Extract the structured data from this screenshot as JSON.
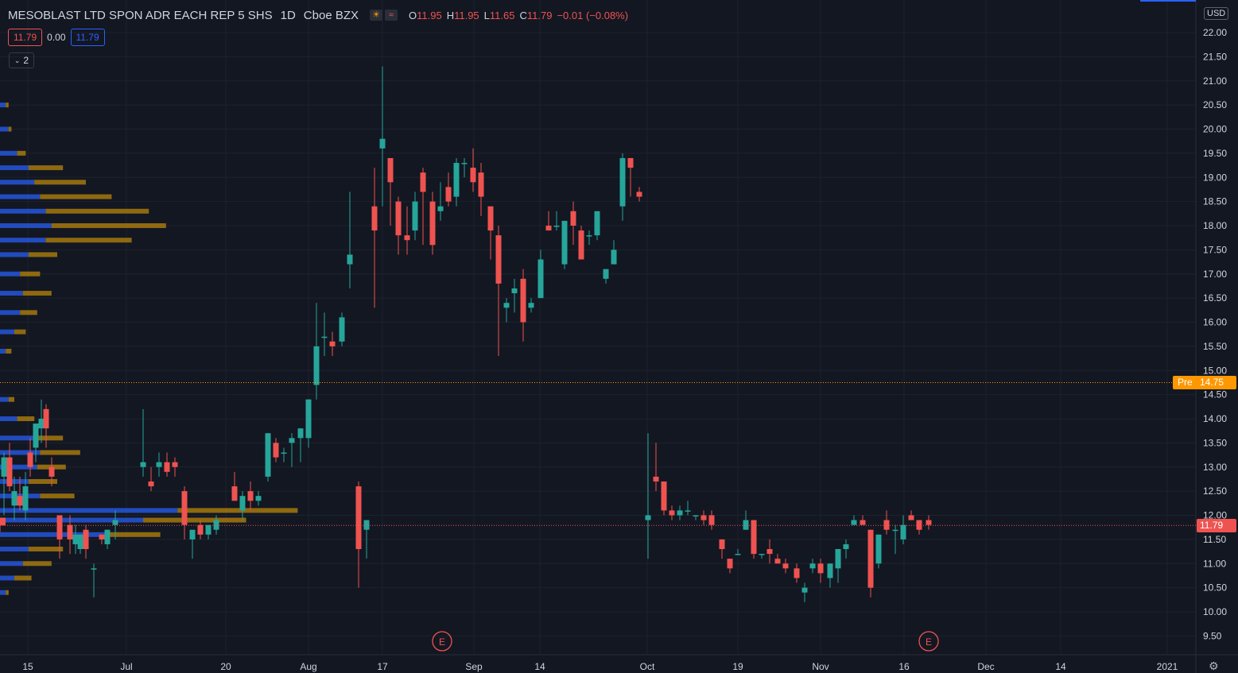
{
  "header": {
    "symbol": "MESOBLAST LTD SPON ADR EACH REP 5 SHS",
    "interval": "1D",
    "exchange": "Cboe BZX",
    "ohlc": {
      "o_label": "O",
      "o": "11.95",
      "h_label": "H",
      "h": "11.95",
      "l_label": "L",
      "l": "11.65",
      "c_label": "C",
      "c": "11.79",
      "chg": "−0.01 (−0.08%)"
    },
    "sell_price": "11.79",
    "spread": "0.00",
    "buy_price": "11.79",
    "indicator_count": "2",
    "icons": [
      "sun-icon",
      "wave-icon"
    ]
  },
  "price_scale": {
    "unit": "USD",
    "min": 9.5,
    "max": 22.0,
    "step": 0.5,
    "pre_label": "Pre",
    "pre_value": "14.75",
    "last_value": "11.79"
  },
  "colors": {
    "up": "#26a69a",
    "down": "#ef5350",
    "background": "#131722",
    "grid": "#1e222d",
    "pre_line": "#ff9800",
    "last_line": "#ef5350",
    "volume_profile_up": "#2962ff",
    "volume_profile_down": "#b8860b"
  },
  "chart_data": {
    "type": "candlestick",
    "title": "MESOBLAST LTD SPON ADR EACH REP 5 SHS · 1D · Cboe BZX",
    "ylim": [
      9.5,
      22.0
    ],
    "x_ticks": [
      "15",
      "Jul",
      "20",
      "Aug",
      "17",
      "Sep",
      "14",
      "Oct",
      "19",
      "Nov",
      "16",
      "Dec",
      "14",
      "2021"
    ],
    "pre_market_price": 14.75,
    "last_price": 11.79,
    "earnings_markers": [
      "E",
      "E"
    ],
    "candles": [
      {
        "o": 12.8,
        "h": 13.3,
        "l": 12.0,
        "c": 13.2
      },
      {
        "o": 13.2,
        "h": 13.5,
        "l": 12.5,
        "c": 12.6
      },
      {
        "o": 12.2,
        "h": 12.8,
        "l": 11.9,
        "c": 12.5
      },
      {
        "o": 12.4,
        "h": 12.8,
        "l": 12.1,
        "c": 12.2
      },
      {
        "o": 12.1,
        "h": 12.9,
        "l": 11.9,
        "c": 12.6
      },
      {
        "o": 13.3,
        "h": 13.6,
        "l": 12.8,
        "c": 13.0
      },
      {
        "o": 13.4,
        "h": 13.9,
        "l": 13.1,
        "c": 13.9
      },
      {
        "o": 13.8,
        "h": 14.4,
        "l": 13.5,
        "c": 14.0
      },
      {
        "o": 14.2,
        "h": 14.3,
        "l": 13.4,
        "c": 13.8
      },
      {
        "o": 13.0,
        "h": 13.2,
        "l": 12.6,
        "c": 12.8
      },
      {
        "o": 12.0,
        "h": 12.0,
        "l": 11.1,
        "c": 11.5
      },
      {
        "o": 11.8,
        "h": 12.0,
        "l": 11.2,
        "c": 11.5
      },
      {
        "o": 11.4,
        "h": 11.8,
        "l": 11.2,
        "c": 11.6
      },
      {
        "o": 11.3,
        "h": 11.6,
        "l": 11.2,
        "c": 11.6
      },
      {
        "o": 11.7,
        "h": 11.8,
        "l": 11.1,
        "c": 11.3
      },
      {
        "o": 10.9,
        "h": 11.0,
        "l": 10.3,
        "c": 10.9
      },
      {
        "o": 11.6,
        "h": 11.6,
        "l": 11.4,
        "c": 11.5
      },
      {
        "o": 11.4,
        "h": 11.7,
        "l": 11.3,
        "c": 11.7
      },
      {
        "o": 11.8,
        "h": 12.1,
        "l": 11.5,
        "c": 11.9
      },
      {
        "o": 13.0,
        "h": 14.2,
        "l": 12.8,
        "c": 13.1
      },
      {
        "o": 12.7,
        "h": 13.0,
        "l": 12.5,
        "c": 12.6
      },
      {
        "o": 13.0,
        "h": 13.3,
        "l": 12.8,
        "c": 13.1
      },
      {
        "o": 13.1,
        "h": 13.3,
        "l": 12.8,
        "c": 12.9
      },
      {
        "o": 13.1,
        "h": 13.2,
        "l": 12.8,
        "c": 13.0
      },
      {
        "o": 12.5,
        "h": 12.6,
        "l": 11.5,
        "c": 11.8
      },
      {
        "o": 11.5,
        "h": 11.6,
        "l": 11.1,
        "c": 11.7
      },
      {
        "o": 11.8,
        "h": 11.9,
        "l": 11.5,
        "c": 11.6
      },
      {
        "o": 11.6,
        "h": 11.8,
        "l": 11.5,
        "c": 11.8
      },
      {
        "o": 11.7,
        "h": 12.0,
        "l": 11.6,
        "c": 11.9
      },
      {
        "o": 12.6,
        "h": 12.9,
        "l": 12.3,
        "c": 12.3
      },
      {
        "o": 12.1,
        "h": 12.5,
        "l": 11.9,
        "c": 12.4
      },
      {
        "o": 12.5,
        "h": 12.7,
        "l": 12.1,
        "c": 12.3
      },
      {
        "o": 12.3,
        "h": 12.5,
        "l": 12.2,
        "c": 12.4
      },
      {
        "o": 12.8,
        "h": 13.7,
        "l": 12.7,
        "c": 13.7
      },
      {
        "o": 13.5,
        "h": 13.6,
        "l": 13.1,
        "c": 13.2
      },
      {
        "o": 13.3,
        "h": 13.4,
        "l": 13.1,
        "c": 13.3
      },
      {
        "o": 13.5,
        "h": 13.7,
        "l": 13.0,
        "c": 13.6
      },
      {
        "o": 13.6,
        "h": 13.8,
        "l": 13.1,
        "c": 13.8
      },
      {
        "o": 13.6,
        "h": 14.4,
        "l": 13.4,
        "c": 14.4
      },
      {
        "o": 14.7,
        "h": 16.4,
        "l": 14.4,
        "c": 15.5
      },
      {
        "o": 15.7,
        "h": 16.2,
        "l": 15.3,
        "c": 15.7
      },
      {
        "o": 15.6,
        "h": 15.8,
        "l": 15.3,
        "c": 15.5
      },
      {
        "o": 15.6,
        "h": 16.2,
        "l": 15.5,
        "c": 16.1
      },
      {
        "o": 17.2,
        "h": 18.7,
        "l": 16.7,
        "c": 17.4
      },
      {
        "o": 12.6,
        "h": 12.7,
        "l": 10.5,
        "c": 11.3
      },
      {
        "o": 11.7,
        "h": 11.9,
        "l": 11.1,
        "c": 11.9
      },
      {
        "o": 18.4,
        "h": 19.2,
        "l": 16.3,
        "c": 17.9
      },
      {
        "o": 19.6,
        "h": 21.3,
        "l": 18.4,
        "c": 19.8
      },
      {
        "o": 19.4,
        "h": 19.4,
        "l": 18.0,
        "c": 18.9
      },
      {
        "o": 18.5,
        "h": 18.6,
        "l": 17.4,
        "c": 17.8
      },
      {
        "o": 17.8,
        "h": 18.4,
        "l": 17.4,
        "c": 17.7
      },
      {
        "o": 17.9,
        "h": 18.7,
        "l": 17.7,
        "c": 18.5
      },
      {
        "o": 19.1,
        "h": 19.2,
        "l": 17.6,
        "c": 18.7
      },
      {
        "o": 18.5,
        "h": 18.7,
        "l": 17.4,
        "c": 17.6
      },
      {
        "o": 18.3,
        "h": 18.9,
        "l": 18.1,
        "c": 18.4
      },
      {
        "o": 18.8,
        "h": 19.1,
        "l": 18.4,
        "c": 18.5
      },
      {
        "o": 18.6,
        "h": 19.4,
        "l": 18.4,
        "c": 19.3
      },
      {
        "o": 19.3,
        "h": 19.4,
        "l": 19.0,
        "c": 19.3
      },
      {
        "o": 19.2,
        "h": 19.6,
        "l": 18.7,
        "c": 18.9
      },
      {
        "o": 19.1,
        "h": 19.3,
        "l": 18.2,
        "c": 18.6
      },
      {
        "o": 18.4,
        "h": 18.4,
        "l": 17.3,
        "c": 17.9
      },
      {
        "o": 17.8,
        "h": 18.0,
        "l": 15.3,
        "c": 16.8
      },
      {
        "o": 16.3,
        "h": 16.5,
        "l": 16.0,
        "c": 16.4
      },
      {
        "o": 16.6,
        "h": 16.9,
        "l": 16.2,
        "c": 16.7
      },
      {
        "o": 16.9,
        "h": 17.1,
        "l": 15.6,
        "c": 16.0
      },
      {
        "o": 16.3,
        "h": 16.5,
        "l": 16.2,
        "c": 16.4
      },
      {
        "o": 16.5,
        "h": 17.5,
        "l": 16.5,
        "c": 17.3
      },
      {
        "o": 18.0,
        "h": 18.3,
        "l": 17.9,
        "c": 17.9
      },
      {
        "o": 18.0,
        "h": 18.3,
        "l": 17.9,
        "c": 18.0
      },
      {
        "o": 17.2,
        "h": 18.1,
        "l": 17.1,
        "c": 18.1
      },
      {
        "o": 18.3,
        "h": 18.5,
        "l": 17.6,
        "c": 18.0
      },
      {
        "o": 17.9,
        "h": 18.0,
        "l": 17.3,
        "c": 17.3
      },
      {
        "o": 17.8,
        "h": 17.9,
        "l": 17.6,
        "c": 17.8
      },
      {
        "o": 17.8,
        "h": 18.3,
        "l": 17.7,
        "c": 18.3
      },
      {
        "o": 16.9,
        "h": 17.1,
        "l": 16.8,
        "c": 17.1
      },
      {
        "o": 17.2,
        "h": 17.7,
        "l": 17.2,
        "c": 17.5
      },
      {
        "o": 18.4,
        "h": 19.5,
        "l": 18.1,
        "c": 19.4
      },
      {
        "o": 19.4,
        "h": 19.4,
        "l": 18.6,
        "c": 19.2
      },
      {
        "o": 18.7,
        "h": 18.8,
        "l": 18.5,
        "c": 18.6
      },
      {
        "o": 11.9,
        "h": 13.7,
        "l": 11.1,
        "c": 12.0
      },
      {
        "o": 12.8,
        "h": 13.5,
        "l": 12.5,
        "c": 12.7
      },
      {
        "o": 12.7,
        "h": 12.7,
        "l": 12.0,
        "c": 12.1
      },
      {
        "o": 12.1,
        "h": 12.2,
        "l": 11.9,
        "c": 12.0
      },
      {
        "o": 12.0,
        "h": 12.2,
        "l": 11.9,
        "c": 12.1
      },
      {
        "o": 12.1,
        "h": 12.3,
        "l": 12.0,
        "c": 12.1
      },
      {
        "o": 12.0,
        "h": 12.0,
        "l": 11.9,
        "c": 12.0
      },
      {
        "o": 12.0,
        "h": 12.1,
        "l": 11.8,
        "c": 11.9
      },
      {
        "o": 12.0,
        "h": 12.1,
        "l": 11.7,
        "c": 11.8
      },
      {
        "o": 11.5,
        "h": 11.5,
        "l": 11.1,
        "c": 11.3
      },
      {
        "o": 11.1,
        "h": 11.1,
        "l": 10.8,
        "c": 10.9
      },
      {
        "o": 11.2,
        "h": 11.3,
        "l": 11.2,
        "c": 11.2
      },
      {
        "o": 11.7,
        "h": 12.1,
        "l": 11.7,
        "c": 11.9
      },
      {
        "o": 11.9,
        "h": 11.9,
        "l": 11.1,
        "c": 11.2
      },
      {
        "o": 11.2,
        "h": 11.2,
        "l": 11.1,
        "c": 11.2
      },
      {
        "o": 11.3,
        "h": 11.5,
        "l": 11.0,
        "c": 11.2
      },
      {
        "o": 11.1,
        "h": 11.2,
        "l": 11.0,
        "c": 11.0
      },
      {
        "o": 11.0,
        "h": 11.1,
        "l": 10.8,
        "c": 10.9
      },
      {
        "o": 10.9,
        "h": 11.0,
        "l": 10.6,
        "c": 10.7
      },
      {
        "o": 10.4,
        "h": 10.6,
        "l": 10.2,
        "c": 10.5
      },
      {
        "o": 10.9,
        "h": 11.1,
        "l": 10.8,
        "c": 11.0
      },
      {
        "o": 11.0,
        "h": 11.1,
        "l": 10.6,
        "c": 10.8
      },
      {
        "o": 10.7,
        "h": 11.0,
        "l": 10.5,
        "c": 11.0
      },
      {
        "o": 10.9,
        "h": 11.3,
        "l": 10.6,
        "c": 11.3
      },
      {
        "o": 11.3,
        "h": 11.5,
        "l": 11.1,
        "c": 11.4
      },
      {
        "o": 11.8,
        "h": 12.0,
        "l": 11.8,
        "c": 11.9
      },
      {
        "o": 11.9,
        "h": 12.0,
        "l": 11.8,
        "c": 11.8
      },
      {
        "o": 11.7,
        "h": 11.7,
        "l": 10.3,
        "c": 10.5
      },
      {
        "o": 11.0,
        "h": 11.6,
        "l": 10.9,
        "c": 11.6
      },
      {
        "o": 11.9,
        "h": 12.1,
        "l": 11.6,
        "c": 11.7
      },
      {
        "o": 11.7,
        "h": 11.8,
        "l": 11.2,
        "c": 11.7
      },
      {
        "o": 11.5,
        "h": 12.0,
        "l": 11.4,
        "c": 11.8
      },
      {
        "o": 12.0,
        "h": 12.1,
        "l": 11.9,
        "c": 11.9
      },
      {
        "o": 11.9,
        "h": 11.9,
        "l": 11.6,
        "c": 11.7
      },
      {
        "o": 11.9,
        "h": 12.0,
        "l": 11.7,
        "c": 11.8
      },
      {
        "o": 11.95,
        "h": 11.95,
        "l": 11.65,
        "c": 11.79
      }
    ],
    "volume_profile": [
      {
        "price": 20.5,
        "up": 0.02,
        "down": 0.01
      },
      {
        "price": 20.0,
        "up": 0.03,
        "down": 0.01
      },
      {
        "price": 19.5,
        "up": 0.06,
        "down": 0.03
      },
      {
        "price": 19.2,
        "up": 0.1,
        "down": 0.12
      },
      {
        "price": 18.9,
        "up": 0.12,
        "down": 0.18
      },
      {
        "price": 18.6,
        "up": 0.14,
        "down": 0.25
      },
      {
        "price": 18.3,
        "up": 0.16,
        "down": 0.36
      },
      {
        "price": 18.0,
        "up": 0.18,
        "down": 0.4
      },
      {
        "price": 17.7,
        "up": 0.16,
        "down": 0.3
      },
      {
        "price": 17.4,
        "up": 0.1,
        "down": 0.1
      },
      {
        "price": 17.0,
        "up": 0.07,
        "down": 0.07
      },
      {
        "price": 16.6,
        "up": 0.08,
        "down": 0.1
      },
      {
        "price": 16.2,
        "up": 0.07,
        "down": 0.06
      },
      {
        "price": 15.8,
        "up": 0.05,
        "down": 0.04
      },
      {
        "price": 15.4,
        "up": 0.02,
        "down": 0.02
      },
      {
        "price": 14.4,
        "up": 0.03,
        "down": 0.02
      },
      {
        "price": 14.0,
        "up": 0.06,
        "down": 0.06
      },
      {
        "price": 13.6,
        "up": 0.12,
        "down": 0.1
      },
      {
        "price": 13.3,
        "up": 0.14,
        "down": 0.14
      },
      {
        "price": 13.0,
        "up": 0.13,
        "down": 0.1
      },
      {
        "price": 12.7,
        "up": 0.1,
        "down": 0.1
      },
      {
        "price": 12.4,
        "up": 0.14,
        "down": 0.12
      },
      {
        "price": 12.1,
        "up": 0.62,
        "down": 0.42
      },
      {
        "price": 11.9,
        "up": 0.5,
        "down": 0.36
      },
      {
        "price": 11.6,
        "up": 0.38,
        "down": 0.18
      },
      {
        "price": 11.3,
        "up": 0.1,
        "down": 0.12
      },
      {
        "price": 11.0,
        "up": 0.08,
        "down": 0.1
      },
      {
        "price": 10.7,
        "up": 0.05,
        "down": 0.06
      },
      {
        "price": 10.4,
        "up": 0.02,
        "down": 0.01
      }
    ]
  }
}
